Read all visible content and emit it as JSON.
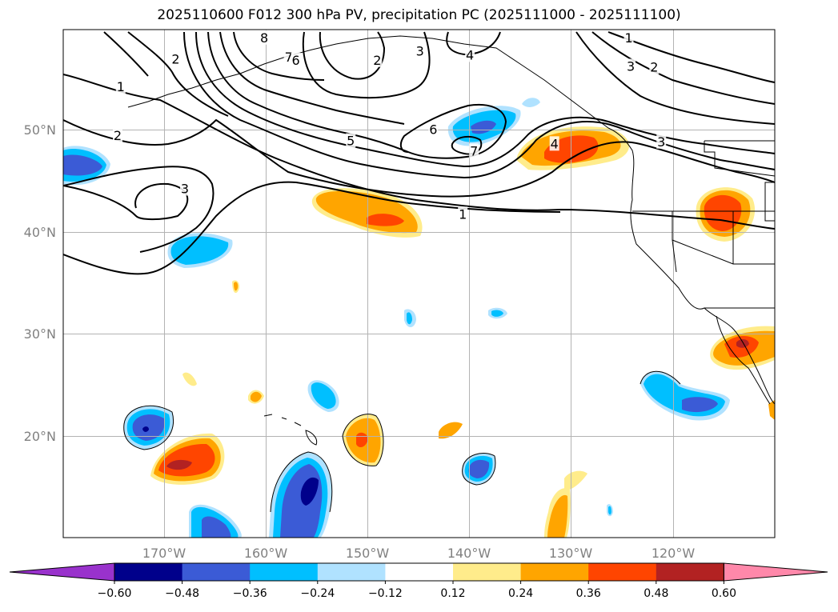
{
  "title": "2025110600 F012 300 hPa PV, precipitation PC (2025111000 - 2025111100)",
  "lon_ticks": [
    "170°W",
    "160°W",
    "150°W",
    "140°W",
    "130°W",
    "120°W"
  ],
  "lat_ticks": [
    "20°N",
    "30°N",
    "40°N",
    "50°N"
  ],
  "colorbar": {
    "ticks": [
      "−0.60",
      "−0.48",
      "−0.36",
      "−0.24",
      "−0.12",
      "0.12",
      "0.24",
      "0.36",
      "0.48",
      "0.60"
    ],
    "colors": [
      "#9932cc",
      "#00008b",
      "#3b5bd6",
      "#00bfff",
      "#b0e2ff",
      "#ffffff",
      "#ffec8b",
      "#ffa500",
      "#ff4500",
      "#b22222",
      "#ff88aa"
    ]
  },
  "contour_labels": [
    {
      "text": "1",
      "lon": -174.3,
      "lat": 54.2
    },
    {
      "text": "2",
      "lon": -174.6,
      "lat": 49.4
    },
    {
      "text": "3",
      "lon": -168.0,
      "lat": 44.2
    },
    {
      "text": "2",
      "lon": -168.9,
      "lat": 56.9
    },
    {
      "text": "5",
      "lon": -151.7,
      "lat": 48.9
    },
    {
      "text": "6",
      "lon": -143.6,
      "lat": 50.0
    },
    {
      "text": "7",
      "lon": -139.6,
      "lat": 47.9
    },
    {
      "text": "1",
      "lon": -140.7,
      "lat": 41.7
    },
    {
      "text": "2",
      "lon": -149.1,
      "lat": 56.8
    },
    {
      "text": "3",
      "lon": -144.9,
      "lat": 57.7
    },
    {
      "text": "4",
      "lon": -140.0,
      "lat": 57.3
    },
    {
      "text": "4",
      "lon": -131.7,
      "lat": 48.6
    },
    {
      "text": "3",
      "lon": -121.2,
      "lat": 48.8
    },
    {
      "text": "1",
      "lon": -124.4,
      "lat": 59.0
    },
    {
      "text": "3",
      "lon": -124.2,
      "lat": 56.2
    },
    {
      "text": "2",
      "lon": -121.9,
      "lat": 56.1
    },
    {
      "text": "7",
      "lon": -157.8,
      "lat": 57.1
    },
    {
      "text": "6",
      "lon": -157.1,
      "lat": 56.8
    },
    {
      "text": "8",
      "lon": -160.2,
      "lat": 59.0
    }
  ]
}
